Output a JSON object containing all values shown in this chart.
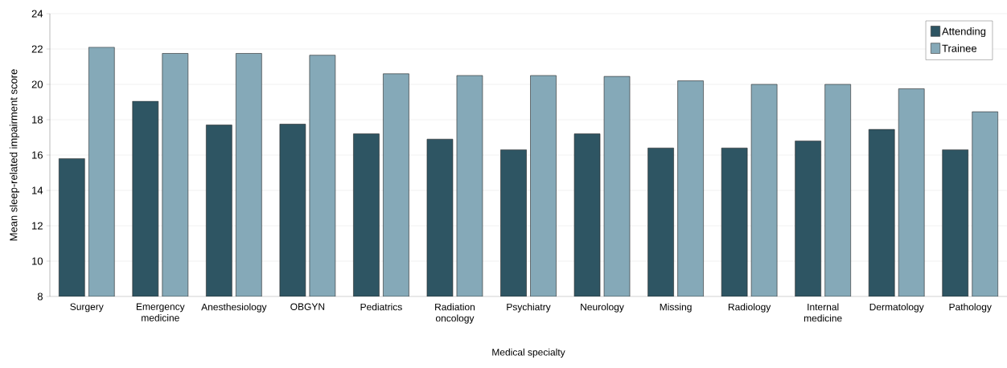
{
  "chart_data": {
    "type": "bar",
    "xlabel": "Medical specialty",
    "ylabel": "Mean sleep-related impairment score",
    "categories": [
      "Surgery",
      "Emergency medicine",
      "Anesthesiology",
      "OBGYN",
      "Pediatrics",
      "Radiation oncology",
      "Psychiatry",
      "Neurology",
      "Missing",
      "Radiology",
      "Internal medicine",
      "Dermatology",
      "Pathology"
    ],
    "series": [
      {
        "name": "Attending",
        "color": "#2e5563",
        "values": [
          15.8,
          19.05,
          17.7,
          17.75,
          17.2,
          16.9,
          16.3,
          17.2,
          16.4,
          16.4,
          16.8,
          17.45,
          16.3
        ]
      },
      {
        "name": "Trainee",
        "color": "#85a9b8",
        "values": [
          22.1,
          21.75,
          21.75,
          21.65,
          20.6,
          20.5,
          20.5,
          20.45,
          20.2,
          20.0,
          20.0,
          19.75,
          18.45
        ]
      }
    ],
    "ylim": [
      8,
      24
    ],
    "yticks": [
      8,
      10,
      12,
      14,
      16,
      18,
      20,
      22,
      24
    ],
    "grid": "y",
    "legend": "top right"
  }
}
